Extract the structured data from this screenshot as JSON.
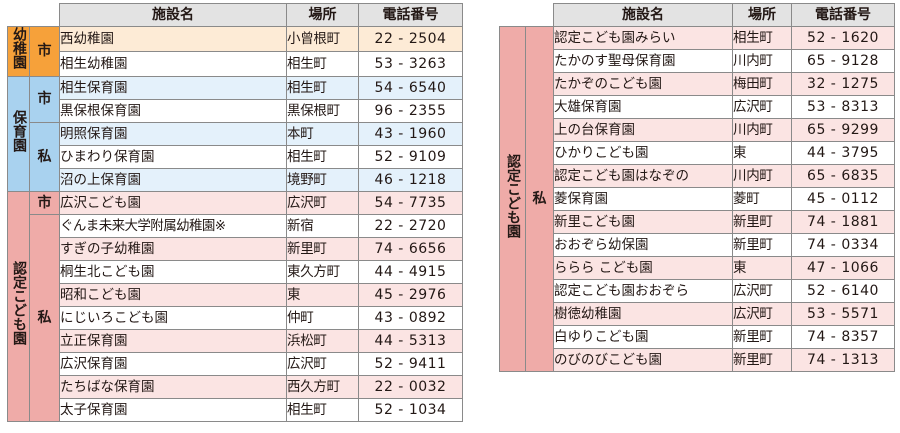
{
  "headers": {
    "name": "施設名",
    "place": "場所",
    "phone": "電話番号"
  },
  "left": {
    "categories": {
      "kinder": "幼稚園",
      "hoiku": "保育園",
      "nintei": "認定こども園"
    },
    "subs": {
      "kinder_city": "市",
      "hoiku_city": "市",
      "hoiku_private": "私",
      "nintei_city": "市",
      "nintei_private": "私"
    },
    "rows": [
      {
        "name": "西幼稚園",
        "place": "小曾根町",
        "phone": "22 - 2504"
      },
      {
        "name": "相生幼稚園",
        "place": "相生町",
        "phone": "53 - 3263"
      },
      {
        "name": "相生保育園",
        "place": "相生町",
        "phone": "54 - 6540"
      },
      {
        "name": "黒保根保育園",
        "place": "黒保根町",
        "phone": "96 - 2355"
      },
      {
        "name": "明照保育園",
        "place": "本町",
        "phone": "43 - 1960"
      },
      {
        "name": "ひまわり保育園",
        "place": "相生町",
        "phone": "52 - 9109"
      },
      {
        "name": "沼の上保育園",
        "place": "境野町",
        "phone": "46 - 1218"
      },
      {
        "name": "広沢こども園",
        "place": "広沢町",
        "phone": "54 - 7735"
      },
      {
        "name": "ぐんま未来大学附属幼稚園※",
        "place": "新宿",
        "phone": "22 - 2720"
      },
      {
        "name": "すぎの子幼稚園",
        "place": "新里町",
        "phone": "74 - 6656"
      },
      {
        "name": "桐生北こども園",
        "place": "東久方町",
        "phone": "44 - 4915"
      },
      {
        "name": "昭和こども園",
        "place": "東",
        "phone": "45 - 2976"
      },
      {
        "name": "にじいろこども園",
        "place": "仲町",
        "phone": "43 - 0892"
      },
      {
        "name": "立正保育園",
        "place": "浜松町",
        "phone": "44 - 5313"
      },
      {
        "name": "広沢保育園",
        "place": "広沢町",
        "phone": "52 - 9411"
      },
      {
        "name": "たちばな保育園",
        "place": "西久方町",
        "phone": "22 - 0032"
      },
      {
        "name": "太子保育園",
        "place": "相生町",
        "phone": "52 - 1034"
      }
    ]
  },
  "right": {
    "category": "認定こども園",
    "sub": "私",
    "rows": [
      {
        "name": "認定こども園みらい",
        "place": "相生町",
        "phone": "52 - 1620"
      },
      {
        "name": "たかのす聖母保育園",
        "place": "川内町",
        "phone": "65 - 9128"
      },
      {
        "name": "たかぞのこども園",
        "place": "梅田町",
        "phone": "32 - 1275"
      },
      {
        "name": "大雄保育園",
        "place": "広沢町",
        "phone": "53 - 8313"
      },
      {
        "name": "上の台保育園",
        "place": "川内町",
        "phone": "65 - 9299"
      },
      {
        "name": "ひかりこども園",
        "place": "東",
        "phone": "44 - 3795"
      },
      {
        "name": "認定こども園はなぞの",
        "place": "川内町",
        "phone": "65 - 6835"
      },
      {
        "name": "菱保育園",
        "place": "菱町",
        "phone": "45 - 0112"
      },
      {
        "name": "新里こども園",
        "place": "新里町",
        "phone": "74 - 1881"
      },
      {
        "name": "おおぞら幼保園",
        "place": "新里町",
        "phone": "74 - 0334"
      },
      {
        "name": "ららら こども園",
        "place": "東",
        "phone": "47 - 1066"
      },
      {
        "name": "認定こども園おおぞら",
        "place": "広沢町",
        "phone": "52 - 6140"
      },
      {
        "name": "樹徳幼稚園",
        "place": "広沢町",
        "phone": "53 - 5571"
      },
      {
        "name": "白ゆりこども園",
        "place": "新里町",
        "phone": "74 - 8357"
      },
      {
        "name": "のびのびこども園",
        "place": "新里町",
        "phone": "74 - 1313"
      }
    ]
  }
}
